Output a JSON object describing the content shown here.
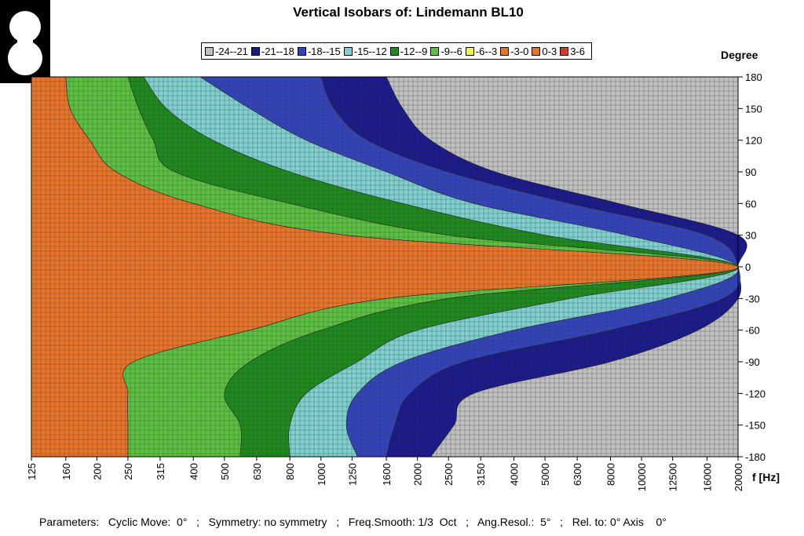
{
  "chart_data": {
    "type": "heatmap",
    "title": "Vertical Isobars of:   Lindemann  BL10",
    "xlabel": "f [Hz]",
    "ylabel": "Degree",
    "x_scale": "log",
    "x_ticks": [
      "125",
      "160",
      "200",
      "250",
      "315",
      "400",
      "500",
      "630",
      "800",
      "1000",
      "1250",
      "1600",
      "2000",
      "2500",
      "3150",
      "4000",
      "5000",
      "6300",
      "8000",
      "10000",
      "12500",
      "16000",
      "20000"
    ],
    "y_ticks": [
      180,
      150,
      120,
      90,
      60,
      30,
      0,
      -30,
      -60,
      -90,
      -120,
      -150,
      -180
    ],
    "xlim": [
      125,
      20000
    ],
    "ylim": [
      -180,
      180
    ],
    "grid": true,
    "legend_position": "top",
    "levels": [
      {
        "label": "-24--21",
        "color": "#c0c0c0"
      },
      {
        "label": "-21--18",
        "color": "#1a1a8c"
      },
      {
        "label": "-18--15",
        "color": "#3344bb"
      },
      {
        "label": "-15--12",
        "color": "#7fcfcf"
      },
      {
        "label": "-12--9",
        "color": "#1e8a1e"
      },
      {
        "label": "-9--6",
        "color": "#5cc040"
      },
      {
        "label": "-6--3",
        "color": "#f2f25a"
      },
      {
        "label": "-3-0",
        "color": "#e8742a"
      },
      {
        "label": "0-3",
        "color": "#e8742a"
      },
      {
        "label": "3-6",
        "color": "#d43a2a"
      }
    ],
    "contour_edges": [
      {
        "angle": 180,
        "bounds": [
          160,
          250,
          280,
          420,
          1000,
          1600
        ]
      },
      {
        "angle": 150,
        "bounds": [
          165,
          270,
          330,
          600,
          1100,
          1800
        ]
      },
      {
        "angle": 120,
        "bounds": [
          190,
          300,
          460,
          900,
          1400,
          2200
        ]
      },
      {
        "angle": 90,
        "bounds": [
          230,
          350,
          800,
          1600,
          2500,
          3500
        ]
      },
      {
        "angle": 60,
        "bounds": [
          400,
          800,
          1800,
          3000,
          6000,
          8500
        ]
      },
      {
        "angle": 30,
        "bounds": [
          1200,
          2500,
          5000,
          9000,
          16000,
          20000
        ]
      },
      {
        "angle": 0,
        "bounds": [
          20000,
          20000,
          20000,
          20000,
          20000,
          20000
        ]
      },
      {
        "angle": -30,
        "bounds": [
          1600,
          2500,
          6000,
          12000,
          18000,
          20000
        ]
      },
      {
        "angle": -60,
        "bounds": [
          600,
          1000,
          2000,
          4000,
          8000,
          15000
        ]
      },
      {
        "angle": -90,
        "bounds": [
          260,
          600,
          1300,
          1800,
          2800,
          8000
        ]
      },
      {
        "angle": -120,
        "bounds": [
          250,
          500,
          900,
          1300,
          1900,
          3000
        ]
      },
      {
        "angle": -150,
        "bounds": [
          250,
          560,
          800,
          1200,
          1700,
          2600
        ]
      },
      {
        "angle": -180,
        "bounds": [
          250,
          560,
          800,
          1300,
          1600,
          2200
        ]
      }
    ]
  },
  "parameters": "Parameters:   Cyclic Move:  0°   ;   Symmetry: no symmetry   ;   Freq.Smooth: 1/3  Oct   ;   Ang.Resol.:  5°   ;   Rel. to: 0° Axis    0°"
}
